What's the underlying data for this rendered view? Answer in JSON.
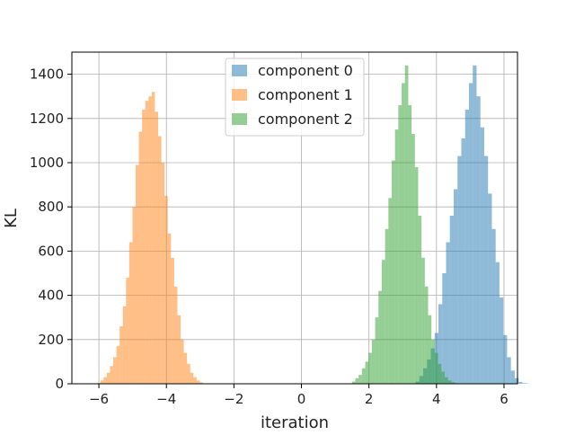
{
  "chart_data": {
    "type": "bar",
    "title": "",
    "xlabel": "iteration",
    "ylabel": "KL",
    "xlim": [
      -6.8,
      6.4
    ],
    "ylim": [
      0,
      1500
    ],
    "xticks": [
      -6,
      -4,
      -2,
      0,
      2,
      4,
      6
    ],
    "xtick_labels": [
      "−6",
      "−4",
      "−2",
      "0",
      "2",
      "4",
      "6"
    ],
    "yticks": [
      0,
      200,
      400,
      600,
      800,
      1000,
      1200,
      1400
    ],
    "ytick_labels": [
      "0",
      "200",
      "400",
      "600",
      "800",
      "1000",
      "1200",
      "1400"
    ],
    "grid": true,
    "legend_position": "upper-center",
    "series": [
      {
        "name": "component 0",
        "color": "#1f77b4",
        "bin_width": 0.113,
        "bin_start": 3.38,
        "values": [
          10,
          35,
          70,
          110,
          160,
          230,
          360,
          500,
          640,
          760,
          880,
          1030,
          1110,
          1240,
          1360,
          1440,
          1300,
          1160,
          1030,
          860,
          700,
          550,
          390,
          220,
          120,
          60,
          25,
          8,
          3,
          1
        ]
      },
      {
        "name": "component 1",
        "color": "#ff7f0e",
        "bin_width": 0.095,
        "bin_start": -6.05,
        "values": [
          3,
          15,
          30,
          50,
          80,
          120,
          170,
          260,
          350,
          480,
          640,
          800,
          990,
          1140,
          1240,
          1280,
          1300,
          1320,
          1230,
          1120,
          1000,
          850,
          680,
          570,
          440,
          310,
          200,
          140,
          90,
          50,
          30,
          15,
          6,
          2
        ]
      },
      {
        "name": "component 2",
        "color": "#2ca02c",
        "bin_width": 0.098,
        "bin_start": 1.4,
        "values": [
          2,
          10,
          25,
          40,
          70,
          100,
          140,
          200,
          300,
          420,
          560,
          700,
          840,
          1010,
          1150,
          1260,
          1360,
          1440,
          1260,
          1130,
          980,
          760,
          570,
          440,
          310,
          200,
          140,
          90,
          55,
          30,
          15,
          7,
          3
        ]
      }
    ]
  }
}
